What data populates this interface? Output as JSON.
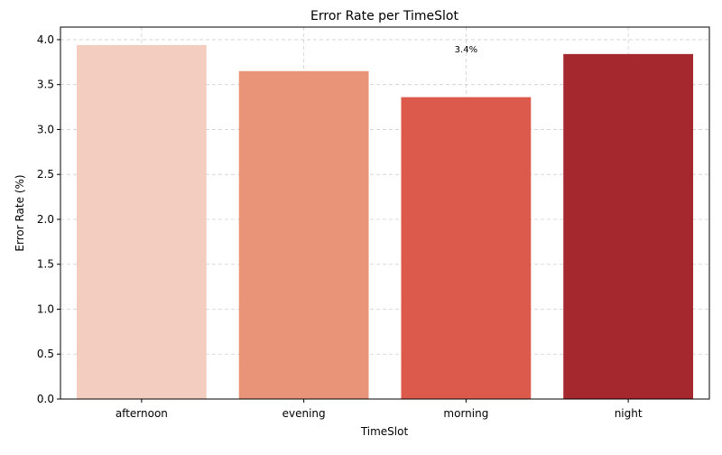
{
  "chart_data": {
    "type": "bar",
    "title": "Error Rate per TimeSlot",
    "xlabel": "TimeSlot",
    "ylabel": "Error Rate (%)",
    "categories": [
      "afternoon",
      "evening",
      "morning",
      "night"
    ],
    "values": [
      3.94,
      3.65,
      3.36,
      3.84
    ],
    "colors": [
      "#f3cdbf",
      "#e99479",
      "#dc5a4b",
      "#a5282e"
    ],
    "ylim": [
      0,
      4.14
    ],
    "yticks": [
      0.0,
      0.5,
      1.0,
      1.5,
      2.0,
      2.5,
      3.0,
      3.5,
      4.0
    ],
    "ytick_labels": [
      "0.0",
      "0.5",
      "1.0",
      "1.5",
      "2.0",
      "2.5",
      "3.0",
      "3.5",
      "4.0"
    ],
    "grid": true,
    "annotation": {
      "text": "3.4%",
      "category": "morning",
      "y": 3.86
    }
  }
}
